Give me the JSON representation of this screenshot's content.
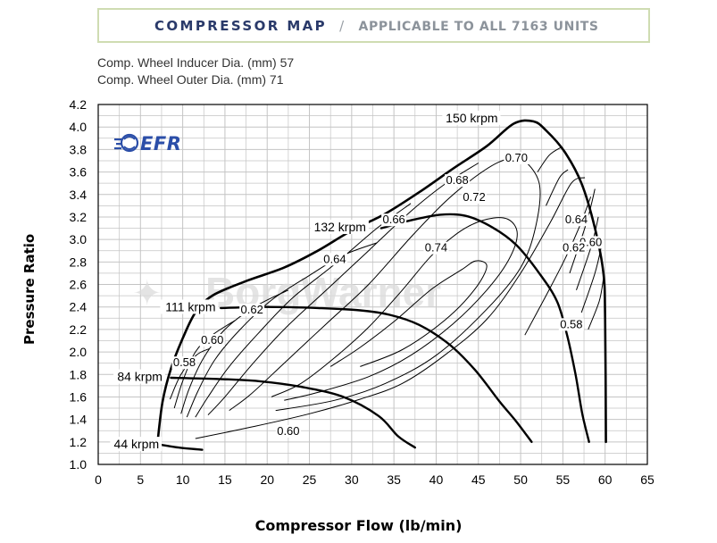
{
  "header": {
    "title": "COMPRESSOR MAP",
    "separator": "/",
    "subtitle": "APPLICABLE TO ALL 7163 UNITS"
  },
  "specs": {
    "inducer": "Comp. Wheel Inducer Dia. (mm) 57",
    "outer": "Comp. Wheel Outer Dia. (mm) 71"
  },
  "logos": {
    "efr": "EFR",
    "watermark": "BorgWarner"
  },
  "colors": {
    "banner_border": "#cfdcb2",
    "banner_title": "#2a3a6a",
    "banner_sub": "#8c939b",
    "efr_blue": "#2b4ea8",
    "grid": "#bdbdbd",
    "lines": "#000000"
  },
  "chart_data": {
    "type": "line",
    "title": "COMPRESSOR MAP",
    "xlabel": "Compressor Flow (lb/min)",
    "ylabel": "Pressure Ratio",
    "xlim": [
      0,
      65
    ],
    "ylim": [
      1.0,
      4.2
    ],
    "x_ticks": [
      0,
      5,
      10,
      15,
      20,
      25,
      30,
      35,
      40,
      45,
      50,
      55,
      60,
      65
    ],
    "y_ticks": [
      1.0,
      1.2,
      1.4,
      1.6,
      1.8,
      2.0,
      2.2,
      2.4,
      2.6,
      2.8,
      3.0,
      3.2,
      3.4,
      3.6,
      3.8,
      4.0,
      4.2
    ],
    "grid": true,
    "surge_line": {
      "points": [
        [
          7.0,
          1.18
        ],
        [
          7.6,
          1.55
        ],
        [
          8.6,
          1.85
        ],
        [
          10.0,
          2.12
        ],
        [
          11.5,
          2.35
        ],
        [
          13.5,
          2.5
        ],
        [
          17.5,
          2.63
        ],
        [
          22,
          2.75
        ],
        [
          26,
          2.9
        ],
        [
          30,
          3.08
        ],
        [
          34,
          3.23
        ],
        [
          38,
          3.42
        ],
        [
          42,
          3.63
        ],
        [
          46,
          3.83
        ],
        [
          49.2,
          4.03
        ],
        [
          51.5,
          4.05
        ],
        [
          53,
          3.97
        ],
        [
          55.2,
          3.78
        ],
        [
          57.2,
          3.5
        ],
        [
          58.8,
          3.1
        ],
        [
          59.8,
          2.7
        ],
        [
          60.0,
          2.3
        ],
        [
          60.1,
          1.2
        ]
      ]
    },
    "speed_lines": [
      {
        "label": "44 krpm",
        "points": [
          [
            7.0,
            1.18
          ],
          [
            9.5,
            1.15
          ],
          [
            12.3,
            1.13
          ]
        ]
      },
      {
        "label": "84 krpm",
        "points": [
          [
            8.6,
            1.77
          ],
          [
            14,
            1.76
          ],
          [
            19,
            1.74
          ],
          [
            24,
            1.69
          ],
          [
            29,
            1.6
          ],
          [
            33.2,
            1.43
          ],
          [
            35.5,
            1.25
          ],
          [
            37.5,
            1.15
          ]
        ]
      },
      {
        "label": "111 krpm",
        "points": [
          [
            14.5,
            2.39
          ],
          [
            20,
            2.4
          ],
          [
            26,
            2.39
          ],
          [
            31,
            2.37
          ],
          [
            34.5,
            2.33
          ],
          [
            38,
            2.24
          ],
          [
            41.5,
            2.07
          ],
          [
            44.6,
            1.84
          ],
          [
            47.5,
            1.56
          ],
          [
            49.5,
            1.38
          ],
          [
            51.3,
            1.2
          ]
        ]
      },
      {
        "label": "132 krpm",
        "points": [
          [
            33.5,
            3.1
          ],
          [
            37,
            3.17
          ],
          [
            40.5,
            3.22
          ],
          [
            43.5,
            3.21
          ],
          [
            46.6,
            3.11
          ],
          [
            49.5,
            2.95
          ],
          [
            52.2,
            2.7
          ],
          [
            54.3,
            2.45
          ],
          [
            55.5,
            2.15
          ],
          [
            56.5,
            1.8
          ],
          [
            57.3,
            1.45
          ],
          [
            58.1,
            1.2
          ]
        ]
      },
      {
        "label": "150 krpm"
      }
    ],
    "efficiency_labels": [
      "0.58",
      "0.60",
      "0.62",
      "0.64",
      "0.66",
      "0.68",
      "0.70",
      "0.72",
      "0.74"
    ],
    "efficiency_contours": [
      {
        "label": "0.74",
        "points": [
          [
            27.5,
            1.87
          ],
          [
            31,
            2.04
          ],
          [
            35,
            2.27
          ],
          [
            39.5,
            2.56
          ],
          [
            43,
            2.73
          ],
          [
            44.7,
            2.81
          ],
          [
            46,
            2.76
          ],
          [
            44.5,
            2.55
          ],
          [
            41,
            2.28
          ],
          [
            36,
            2.02
          ],
          [
            31,
            1.87
          ]
        ]
      },
      {
        "label": "0.72",
        "points": [
          [
            20.5,
            1.6
          ],
          [
            24,
            1.72
          ],
          [
            28,
            1.95
          ],
          [
            32,
            2.22
          ],
          [
            36,
            2.55
          ],
          [
            39.5,
            2.86
          ],
          [
            43,
            3.08
          ],
          [
            46,
            3.18
          ],
          [
            48.5,
            3.18
          ],
          [
            49.6,
            3.05
          ],
          [
            48.6,
            2.82
          ],
          [
            46,
            2.55
          ],
          [
            42,
            2.25
          ],
          [
            37,
            1.97
          ],
          [
            32,
            1.78
          ],
          [
            26,
            1.64
          ],
          [
            22,
            1.57
          ]
        ]
      },
      {
        "label": "0.70",
        "points": [
          [
            15.5,
            1.48
          ],
          [
            18,
            1.62
          ],
          [
            22,
            1.9
          ],
          [
            27,
            2.25
          ],
          [
            32,
            2.6
          ],
          [
            37,
            3.02
          ],
          [
            41,
            3.33
          ],
          [
            44.5,
            3.55
          ],
          [
            47.5,
            3.69
          ],
          [
            50,
            3.72
          ],
          [
            52.2,
            3.5
          ],
          [
            51.8,
            3.12
          ],
          [
            50,
            2.75
          ],
          [
            46,
            2.38
          ],
          [
            40,
            1.97
          ],
          [
            34,
            1.72
          ],
          [
            28,
            1.57
          ],
          [
            21,
            1.48
          ]
        ]
      },
      {
        "label": "0.68",
        "points": [
          [
            13,
            1.44
          ],
          [
            15,
            1.6
          ],
          [
            18,
            1.87
          ],
          [
            22,
            2.2
          ],
          [
            27,
            2.55
          ],
          [
            32,
            2.9
          ],
          [
            37,
            3.25
          ],
          [
            41,
            3.49
          ],
          [
            45,
            3.68
          ]
        ]
      },
      {
        "label": "0.66",
        "points": [
          [
            11.5,
            1.42
          ],
          [
            13,
            1.6
          ],
          [
            15.5,
            1.87
          ],
          [
            19,
            2.17
          ],
          [
            23,
            2.48
          ],
          [
            28,
            2.78
          ],
          [
            33,
            3.1
          ],
          [
            37,
            3.32
          ]
        ]
      },
      {
        "label": "0.64",
        "points": [
          [
            10.5,
            1.42
          ],
          [
            11.8,
            1.65
          ],
          [
            13.8,
            1.93
          ],
          [
            16.8,
            2.2
          ],
          [
            20.5,
            2.46
          ],
          [
            25,
            2.68
          ],
          [
            29,
            2.86
          ],
          [
            33,
            2.97
          ]
        ]
      },
      {
        "label": "0.62",
        "points": [
          [
            9.8,
            1.45
          ],
          [
            10.8,
            1.68
          ],
          [
            12.5,
            1.95
          ],
          [
            15,
            2.2
          ],
          [
            18.5,
            2.4
          ],
          [
            22.5,
            2.55
          ]
        ]
      },
      {
        "label": "0.60",
        "points": [
          [
            9,
            1.5
          ],
          [
            10,
            1.74
          ],
          [
            11.5,
            2.0
          ],
          [
            13.5,
            2.15
          ],
          [
            16.2,
            2.28
          ]
        ]
      },
      {
        "label": "0.58",
        "points": [
          [
            8.5,
            1.58
          ],
          [
            9.8,
            1.8
          ],
          [
            11.6,
            1.97
          ],
          [
            13.2,
            2.03
          ]
        ]
      },
      {
        "label": "0.60",
        "points": [
          [
            11.5,
            1.23
          ],
          [
            18,
            1.33
          ],
          [
            25,
            1.45
          ],
          [
            31,
            1.58
          ],
          [
            36,
            1.72
          ],
          [
            41,
            1.97
          ],
          [
            46,
            2.29
          ],
          [
            50,
            2.7
          ],
          [
            53.5,
            3.15
          ],
          [
            56,
            3.5
          ],
          [
            57.6,
            3.55
          ]
        ]
      },
      {
        "label": "0.58",
        "points": [
          [
            50.5,
            2.15
          ],
          [
            53,
            2.5
          ],
          [
            55.2,
            2.82
          ],
          [
            57,
            3.12
          ],
          [
            58.3,
            3.38
          ]
        ]
      }
    ]
  }
}
